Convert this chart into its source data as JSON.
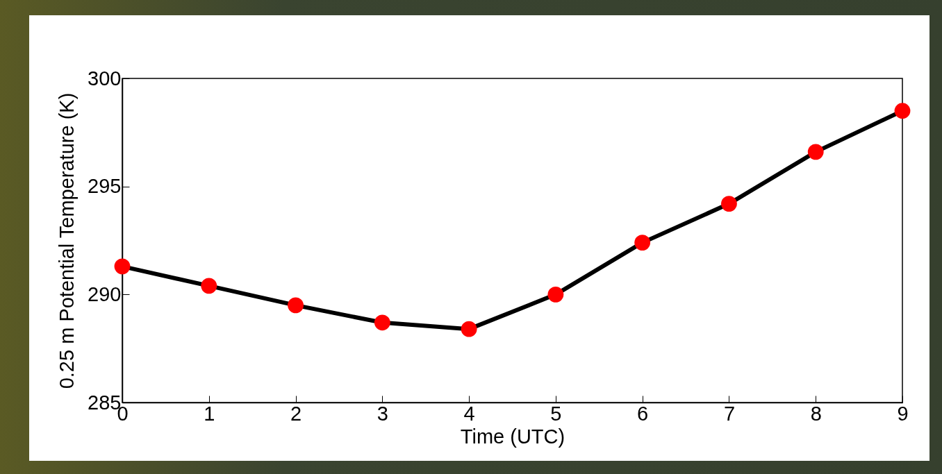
{
  "chart_data": {
    "type": "line",
    "xlabel": "Time (UTC)",
    "ylabel": "0.25 m Potential Temperature (K)",
    "x": [
      0,
      1,
      2,
      3,
      4,
      5,
      6,
      7,
      8,
      9
    ],
    "series": [
      {
        "color": "#000000",
        "line_style": "solid",
        "marker": "circle",
        "colors": [
          "#ff0000",
          "#ff0000",
          "#ff0000",
          "#ff0000",
          "#ff0000",
          "#ff0000",
          "#ff0000",
          "#ff0000",
          "#ff0000",
          "#ff0000"
        ],
        "values": [
          291.3,
          290.4,
          289.5,
          288.7,
          288.4,
          290.0,
          292.4,
          294.2,
          296.6,
          298.5
        ]
      }
    ],
    "xlim": [
      0,
      9
    ],
    "xticks": [
      0,
      1,
      2,
      3,
      4,
      5,
      6,
      7,
      8,
      9
    ],
    "ylim": [
      285,
      300
    ],
    "yticks": [
      285,
      290,
      295,
      300
    ]
  }
}
